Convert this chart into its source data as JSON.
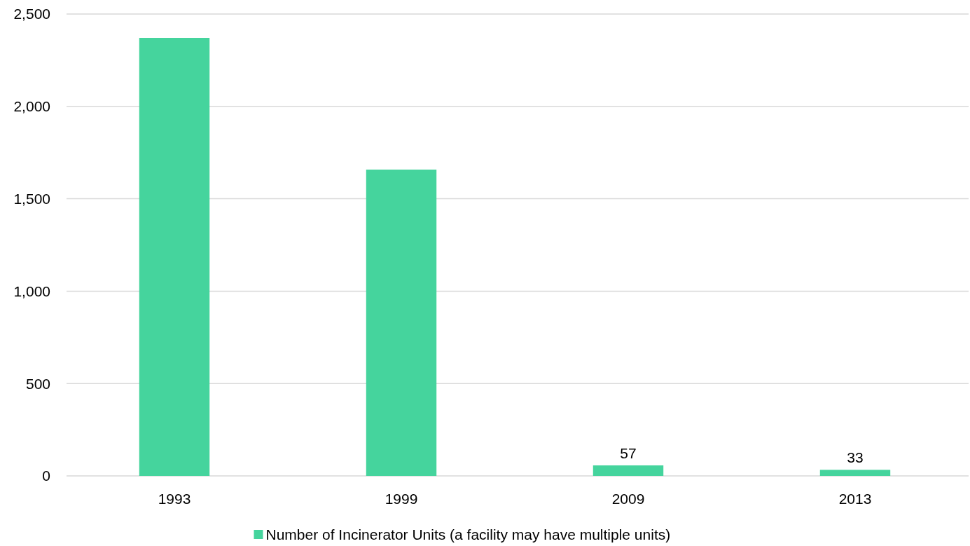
{
  "chart_data": {
    "type": "bar",
    "categories": [
      "1993",
      "1999",
      "2009",
      "2013"
    ],
    "series": [
      {
        "name": "Number of Incinerator Units (a facility may have multiple units)",
        "color": "#45d49d",
        "values": [
          2371,
          1658,
          57,
          33
        ],
        "value_labels": [
          null,
          null,
          "57",
          "33"
        ]
      }
    ],
    "ylim": [
      0,
      2500
    ],
    "yticks": [
      {
        "value": 0,
        "label": "0"
      },
      {
        "value": 500,
        "label": "500"
      },
      {
        "value": 1000,
        "label": "1,000"
      },
      {
        "value": 1500,
        "label": "1,500"
      },
      {
        "value": 2000,
        "label": "2,000"
      },
      {
        "value": 2500,
        "label": "2,500"
      }
    ],
    "grid": "y",
    "legend": "bottom"
  }
}
